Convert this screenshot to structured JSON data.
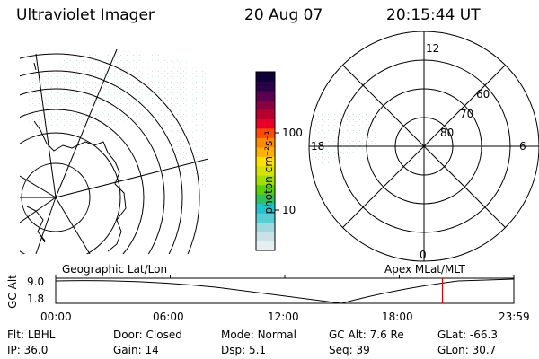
{
  "header": {
    "title": "Ultraviolet Imager",
    "date": "20 Aug 07",
    "time": "20:15:44 UT"
  },
  "colorbar": {
    "label": "photon cm⁻²s⁻¹",
    "tick_100": "100",
    "tick_10": "10"
  },
  "polar": {
    "lat_labels": [
      "60",
      "70",
      "80"
    ],
    "mlt_top": "12",
    "mlt_left": "18",
    "mlt_right": "6",
    "mlt_bottom": "0"
  },
  "panels": {
    "left_label": "Geographic Lat/Lon",
    "right_label": "Apex MLat/MLT"
  },
  "altplot": {
    "axis_label": "GC Alt",
    "y_max": "9.0",
    "y_min": "1.8",
    "x_ticks": [
      "00:00",
      "06:00",
      "12:00",
      "18:00",
      "23:59"
    ],
    "current_marker_hours": 20.26
  },
  "status": [
    [
      {
        "k": "Flt:",
        "v": "LBHL"
      },
      {
        "k": "Door:",
        "v": "Closed"
      },
      {
        "k": "Mode:",
        "v": "Normal"
      },
      {
        "k": "GC Alt:",
        "v": "7.6 Re"
      },
      {
        "k": "GLat:",
        "v": "-66.3"
      }
    ],
    [
      {
        "k": "IP:",
        "v": "36.0"
      },
      {
        "k": "Gain:",
        "v": "14"
      },
      {
        "k": "Dsp:",
        "v": "5.1"
      },
      {
        "k": "Seq:",
        "v": "39"
      },
      {
        "k": "GLon:",
        "v": "30.7"
      }
    ]
  ],
  "colors": {
    "colorbar": [
      "#e6eef0",
      "#c9e2e6",
      "#9fd8de",
      "#59cdd4",
      "#20c4cc",
      "#2fc060",
      "#59d000",
      "#a0e000",
      "#d6e300",
      "#ffe000",
      "#ffb000",
      "#ff8a00",
      "#ff4a00",
      "#e8002a",
      "#b8002e",
      "#8a0040",
      "#5a004e",
      "#2a0048",
      "#10003a"
    ],
    "marker": "#e00000",
    "meridian": "#0000cc"
  }
}
